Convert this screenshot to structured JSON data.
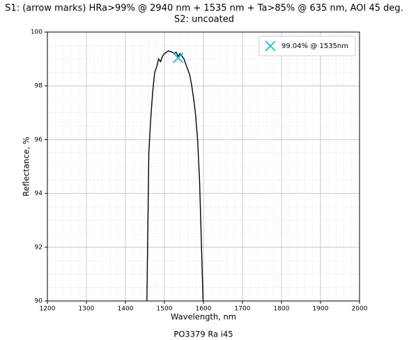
{
  "chart_data": {
    "type": "line",
    "title": [
      "S1: (arrow marks) HRa>99% @ 2940 nm + 1535 nm + Ta>85% @ 635 nm, AOI 45 deg.",
      "S2: uncoated"
    ],
    "xlabel": "Wavelength, nm",
    "ylabel": "Reflectance, %",
    "caption": "PO3379 Ra i45",
    "xlim": [
      1200,
      2000
    ],
    "ylim": [
      90,
      100
    ],
    "xticks": [
      1200,
      1300,
      1400,
      1500,
      1600,
      1700,
      1800,
      1900,
      2000
    ],
    "yticks": [
      90,
      92,
      94,
      96,
      98,
      100
    ],
    "xticks_minor": [
      1220,
      1240,
      1260,
      1280,
      1320,
      1340,
      1360,
      1380,
      1420,
      1440,
      1460,
      1480,
      1520,
      1540,
      1560,
      1580,
      1620,
      1640,
      1660,
      1680,
      1720,
      1740,
      1760,
      1780,
      1820,
      1840,
      1860,
      1880,
      1920,
      1940,
      1960,
      1980
    ],
    "yticks_minor": [
      90.5,
      91,
      91.5,
      92.5,
      93,
      93.5,
      94.5,
      95,
      95.5,
      96.5,
      97,
      97.5,
      98.5,
      99,
      99.5
    ],
    "grid": true,
    "legend": "upper right",
    "series": [
      {
        "color": "#000000",
        "x": [
          1455,
          1460,
          1465,
          1470,
          1475,
          1480,
          1485,
          1490,
          1495,
          1500,
          1505,
          1510,
          1515,
          1520,
          1525,
          1530,
          1535,
          1540,
          1545,
          1550,
          1555,
          1560,
          1565,
          1570,
          1575,
          1580,
          1585,
          1590,
          1595,
          1599
        ],
        "values": [
          90,
          95.5,
          96.8,
          97.8,
          98.5,
          98.7,
          99.0,
          98.9,
          99.1,
          99.2,
          99.25,
          99.3,
          99.28,
          99.25,
          99.2,
          99.25,
          99.1,
          99.2,
          99.1,
          99.0,
          98.8,
          98.6,
          98.4,
          98.0,
          97.5,
          96.9,
          96.0,
          94.5,
          92.0,
          90
        ]
      },
      {
        "name": "99.04% @ 1535nm",
        "color": "#17becf",
        "marker": "x",
        "x": [
          1535
        ],
        "values": [
          99.04
        ]
      }
    ]
  }
}
